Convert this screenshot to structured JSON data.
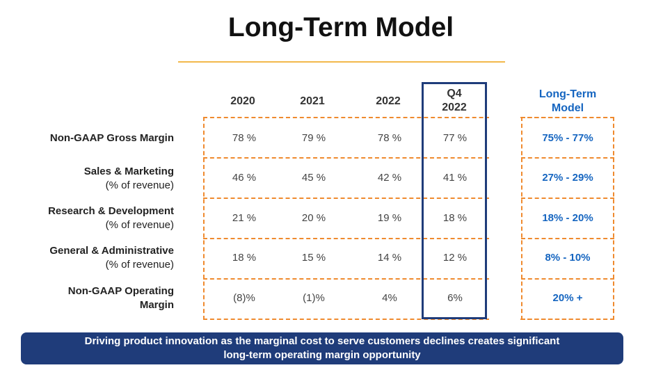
{
  "title": "Long-Term Model",
  "columns": [
    "2020",
    "2021",
    "2022"
  ],
  "q4_column": {
    "line1": "Q4",
    "line2": "2022"
  },
  "ltm_column": {
    "line1": "Long-Term",
    "line2": "Model"
  },
  "rows": [
    {
      "label": "Non-GAAP Gross Margin",
      "sublabel": "",
      "values": [
        "78 %",
        "79 %",
        "78 %"
      ],
      "q4": "77 %",
      "ltm": "75% - 77%"
    },
    {
      "label": "Sales & Marketing",
      "sublabel": "(% of revenue)",
      "values": [
        "46 %",
        "45 %",
        "42 %"
      ],
      "q4": "41 %",
      "ltm": "27% - 29%"
    },
    {
      "label": "Research & Development",
      "sublabel": "(% of revenue)",
      "values": [
        "21 %",
        "20 %",
        "19 %"
      ],
      "q4": "18 %",
      "ltm": "18% - 20%"
    },
    {
      "label": "General & Administrative",
      "sublabel": "(% of revenue)",
      "values": [
        "18 %",
        "15 %",
        "14 %"
      ],
      "q4": "12 %",
      "ltm": "8% - 10%"
    },
    {
      "label": "Non-GAAP Operating",
      "sublabel": "Margin",
      "values": [
        "(8)%",
        "(1)%",
        "4%"
      ],
      "q4": "6%",
      "ltm": "20% +"
    }
  ],
  "banner": {
    "line1": "Driving product innovation as the marginal cost to serve customers declines creates significant",
    "line2": "long-term operating margin opportunity"
  },
  "colors": {
    "accent_orange": "#ef8a2e",
    "navy": "#1f3c7a",
    "blue_text": "#1565c0",
    "gold_rule": "#f2b84b"
  }
}
